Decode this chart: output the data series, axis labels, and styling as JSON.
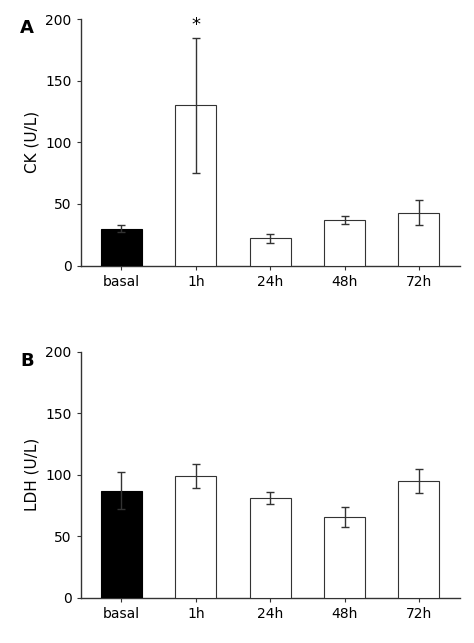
{
  "panel_A": {
    "categories": [
      "basal",
      "1h",
      "24h",
      "48h",
      "72h"
    ],
    "values": [
      30,
      130,
      22,
      37,
      43
    ],
    "errors": [
      3,
      55,
      4,
      3,
      10
    ],
    "bar_colors": [
      "#000000",
      "#ffffff",
      "#ffffff",
      "#ffffff",
      "#ffffff"
    ],
    "bar_edgecolors": [
      "#000000",
      "#333333",
      "#333333",
      "#333333",
      "#333333"
    ],
    "ylabel": "CK (U/L)",
    "ylim": [
      0,
      200
    ],
    "yticks": [
      0,
      50,
      100,
      150,
      200
    ],
    "panel_label": "A",
    "significance": {
      "bar_index": 1,
      "symbol": "*"
    }
  },
  "panel_B": {
    "categories": [
      "basal",
      "1h",
      "24h",
      "48h",
      "72h"
    ],
    "values": [
      87,
      99,
      81,
      66,
      95
    ],
    "errors": [
      15,
      10,
      5,
      8,
      10
    ],
    "bar_colors": [
      "#000000",
      "#ffffff",
      "#ffffff",
      "#ffffff",
      "#ffffff"
    ],
    "bar_edgecolors": [
      "#000000",
      "#333333",
      "#333333",
      "#333333",
      "#333333"
    ],
    "ylabel": "LDH (U/L)",
    "ylim": [
      0,
      200
    ],
    "yticks": [
      0,
      50,
      100,
      150,
      200
    ],
    "panel_label": "B"
  },
  "bar_width": 0.55,
  "figure_bg": "#ffffff",
  "font_size": 10,
  "label_fontsize": 11,
  "panel_label_fontsize": 13,
  "error_capsize": 3,
  "error_linewidth": 1.0,
  "error_color": "#333333",
  "spine_color": "#333333",
  "spine_linewidth": 1.0
}
